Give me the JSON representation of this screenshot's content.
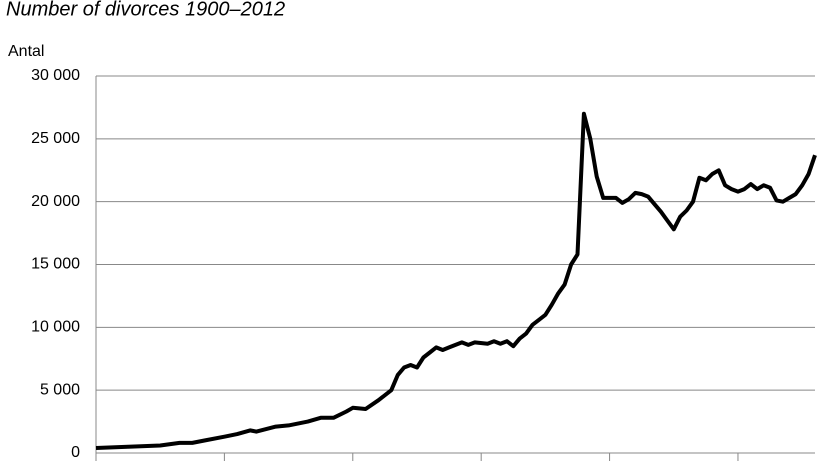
{
  "chart_data": {
    "type": "line",
    "title": "Number of divorces 1900–2012",
    "y_label": "Antal",
    "x": [
      1900,
      1905,
      1910,
      1913,
      1915,
      1917,
      1920,
      1922,
      1924,
      1925,
      1928,
      1930,
      1933,
      1935,
      1937,
      1939,
      1940,
      1942,
      1944,
      1946,
      1947,
      1948,
      1949,
      1950,
      1951,
      1952,
      1953,
      1954,
      1955,
      1957,
      1958,
      1959,
      1961,
      1962,
      1963,
      1964,
      1965,
      1966,
      1967,
      1968,
      1969,
      1970,
      1971,
      1972,
      1973,
      1974,
      1975,
      1976,
      1977,
      1978,
      1979,
      1980,
      1981,
      1982,
      1983,
      1984,
      1985,
      1986,
      1987,
      1988,
      1989,
      1990,
      1991,
      1992,
      1993,
      1994,
      1995,
      1996,
      1997,
      1998,
      1999,
      2000,
      2001,
      2002,
      2003,
      2004,
      2005,
      2006,
      2007,
      2008,
      2009,
      2010,
      2011,
      2012
    ],
    "series": [
      {
        "name": "Divorces",
        "color": "#000000",
        "values": [
          400,
          500,
          600,
          800,
          800,
          1000,
          1300,
          1500,
          1800,
          1700,
          2100,
          2200,
          2500,
          2800,
          2800,
          3300,
          3600,
          3500,
          4200,
          5000,
          6200,
          6800,
          7000,
          6800,
          7600,
          8000,
          8400,
          8200,
          8400,
          8800,
          8600,
          8800,
          8700,
          8900,
          8700,
          8900,
          8500,
          9100,
          9500,
          10200,
          10600,
          11000,
          11800,
          12700,
          13400,
          15000,
          15800,
          27000,
          25000,
          22000,
          20300,
          20300,
          20300,
          19900,
          20200,
          20700,
          20600,
          20400,
          19800,
          19200,
          18500,
          17800,
          18800,
          19300,
          20000,
          21900,
          21700,
          22200,
          22500,
          21300,
          21000,
          20800,
          21000,
          21400,
          21000,
          21300,
          21100,
          20100,
          20000,
          20300,
          20600,
          21300,
          22200,
          23700
        ]
      }
    ],
    "xlim": [
      1900,
      2012
    ],
    "xticks": [
      1900,
      1920,
      1940,
      1960,
      1980,
      2000
    ],
    "ylim": [
      0,
      30000
    ],
    "yticks": [
      {
        "value": 0,
        "label": "0"
      },
      {
        "value": 5000,
        "label": "5 000"
      },
      {
        "value": 10000,
        "label": "10 000"
      },
      {
        "value": 15000,
        "label": "15 000"
      },
      {
        "value": 20000,
        "label": "20 000"
      },
      {
        "value": 25000,
        "label": "25 000"
      },
      {
        "value": 30000,
        "label": "30 000"
      }
    ],
    "grid": true
  }
}
